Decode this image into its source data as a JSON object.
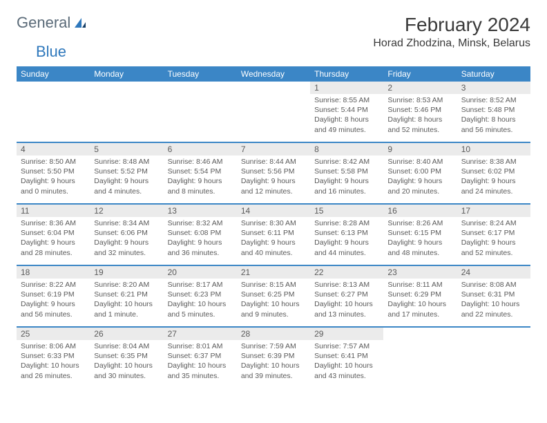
{
  "brand": {
    "general": "General",
    "blue": "Blue"
  },
  "title": "February 2024",
  "location": "Horad Zhodzina, Minsk, Belarus",
  "colors": {
    "header_bg": "#3b86c6",
    "header_text": "#ffffff",
    "daynum_bg": "#ebebeb",
    "text": "#5a5a5a",
    "title_text": "#3a3a3a",
    "logo_gray": "#5a6a78",
    "logo_blue": "#2f78bc",
    "page_bg": "#ffffff"
  },
  "daysOfWeek": [
    "Sunday",
    "Monday",
    "Tuesday",
    "Wednesday",
    "Thursday",
    "Friday",
    "Saturday"
  ],
  "weeks": [
    [
      null,
      null,
      null,
      null,
      {
        "num": "1",
        "sunrise": "8:55 AM",
        "sunset": "5:44 PM",
        "daylight": "8 hours and 49 minutes."
      },
      {
        "num": "2",
        "sunrise": "8:53 AM",
        "sunset": "5:46 PM",
        "daylight": "8 hours and 52 minutes."
      },
      {
        "num": "3",
        "sunrise": "8:52 AM",
        "sunset": "5:48 PM",
        "daylight": "8 hours and 56 minutes."
      }
    ],
    [
      {
        "num": "4",
        "sunrise": "8:50 AM",
        "sunset": "5:50 PM",
        "daylight": "9 hours and 0 minutes."
      },
      {
        "num": "5",
        "sunrise": "8:48 AM",
        "sunset": "5:52 PM",
        "daylight": "9 hours and 4 minutes."
      },
      {
        "num": "6",
        "sunrise": "8:46 AM",
        "sunset": "5:54 PM",
        "daylight": "9 hours and 8 minutes."
      },
      {
        "num": "7",
        "sunrise": "8:44 AM",
        "sunset": "5:56 PM",
        "daylight": "9 hours and 12 minutes."
      },
      {
        "num": "8",
        "sunrise": "8:42 AM",
        "sunset": "5:58 PM",
        "daylight": "9 hours and 16 minutes."
      },
      {
        "num": "9",
        "sunrise": "8:40 AM",
        "sunset": "6:00 PM",
        "daylight": "9 hours and 20 minutes."
      },
      {
        "num": "10",
        "sunrise": "8:38 AM",
        "sunset": "6:02 PM",
        "daylight": "9 hours and 24 minutes."
      }
    ],
    [
      {
        "num": "11",
        "sunrise": "8:36 AM",
        "sunset": "6:04 PM",
        "daylight": "9 hours and 28 minutes."
      },
      {
        "num": "12",
        "sunrise": "8:34 AM",
        "sunset": "6:06 PM",
        "daylight": "9 hours and 32 minutes."
      },
      {
        "num": "13",
        "sunrise": "8:32 AM",
        "sunset": "6:08 PM",
        "daylight": "9 hours and 36 minutes."
      },
      {
        "num": "14",
        "sunrise": "8:30 AM",
        "sunset": "6:11 PM",
        "daylight": "9 hours and 40 minutes."
      },
      {
        "num": "15",
        "sunrise": "8:28 AM",
        "sunset": "6:13 PM",
        "daylight": "9 hours and 44 minutes."
      },
      {
        "num": "16",
        "sunrise": "8:26 AM",
        "sunset": "6:15 PM",
        "daylight": "9 hours and 48 minutes."
      },
      {
        "num": "17",
        "sunrise": "8:24 AM",
        "sunset": "6:17 PM",
        "daylight": "9 hours and 52 minutes."
      }
    ],
    [
      {
        "num": "18",
        "sunrise": "8:22 AM",
        "sunset": "6:19 PM",
        "daylight": "9 hours and 56 minutes."
      },
      {
        "num": "19",
        "sunrise": "8:20 AM",
        "sunset": "6:21 PM",
        "daylight": "10 hours and 1 minute."
      },
      {
        "num": "20",
        "sunrise": "8:17 AM",
        "sunset": "6:23 PM",
        "daylight": "10 hours and 5 minutes."
      },
      {
        "num": "21",
        "sunrise": "8:15 AM",
        "sunset": "6:25 PM",
        "daylight": "10 hours and 9 minutes."
      },
      {
        "num": "22",
        "sunrise": "8:13 AM",
        "sunset": "6:27 PM",
        "daylight": "10 hours and 13 minutes."
      },
      {
        "num": "23",
        "sunrise": "8:11 AM",
        "sunset": "6:29 PM",
        "daylight": "10 hours and 17 minutes."
      },
      {
        "num": "24",
        "sunrise": "8:08 AM",
        "sunset": "6:31 PM",
        "daylight": "10 hours and 22 minutes."
      }
    ],
    [
      {
        "num": "25",
        "sunrise": "8:06 AM",
        "sunset": "6:33 PM",
        "daylight": "10 hours and 26 minutes."
      },
      {
        "num": "26",
        "sunrise": "8:04 AM",
        "sunset": "6:35 PM",
        "daylight": "10 hours and 30 minutes."
      },
      {
        "num": "27",
        "sunrise": "8:01 AM",
        "sunset": "6:37 PM",
        "daylight": "10 hours and 35 minutes."
      },
      {
        "num": "28",
        "sunrise": "7:59 AM",
        "sunset": "6:39 PM",
        "daylight": "10 hours and 39 minutes."
      },
      {
        "num": "29",
        "sunrise": "7:57 AM",
        "sunset": "6:41 PM",
        "daylight": "10 hours and 43 minutes."
      },
      null,
      null
    ]
  ],
  "labels": {
    "sunrise": "Sunrise:",
    "sunset": "Sunset:",
    "daylight": "Daylight:"
  }
}
